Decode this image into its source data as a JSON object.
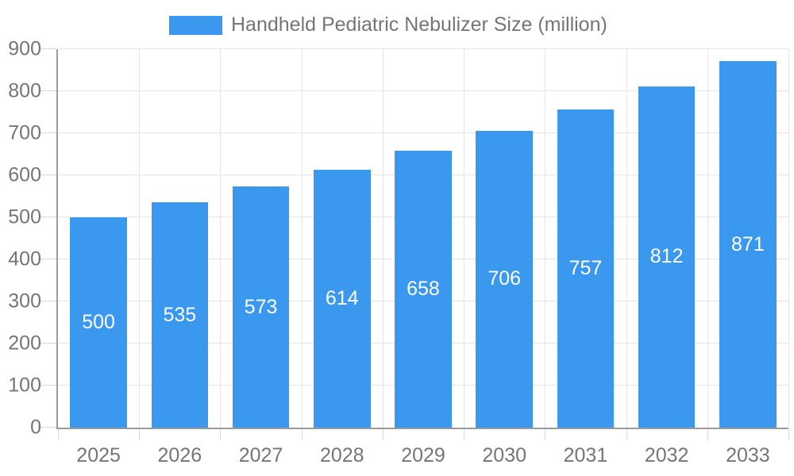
{
  "chart_data": {
    "type": "bar",
    "title": "Handheld Pediatric Nebulizer Size (million)",
    "legend": {
      "position": "top",
      "entries": [
        "Handheld Pediatric Nebulizer Size (million)"
      ]
    },
    "categories": [
      "2025",
      "2026",
      "2027",
      "2028",
      "2029",
      "2030",
      "2031",
      "2032",
      "2033"
    ],
    "series": [
      {
        "name": "Handheld Pediatric Nebulizer Size (million)",
        "values": [
          500,
          535,
          573,
          614,
          658,
          706,
          757,
          812,
          871
        ]
      }
    ],
    "value_labels_shown": true,
    "xlabel": "",
    "ylabel": "",
    "ylim": [
      0,
      900
    ],
    "yticks": [
      0,
      100,
      200,
      300,
      400,
      500,
      600,
      700,
      800,
      900
    ],
    "grid": true,
    "bar_width_fraction": 0.7
  },
  "colors": {
    "bar": "#3A99EF",
    "value_label": "#FFFFFF",
    "axis_text": "#757575",
    "axis_line": "#9B9B9B",
    "gridline": "#E4E4E4",
    "tick": "#D8D8D8",
    "background": "#FFFFFF"
  }
}
